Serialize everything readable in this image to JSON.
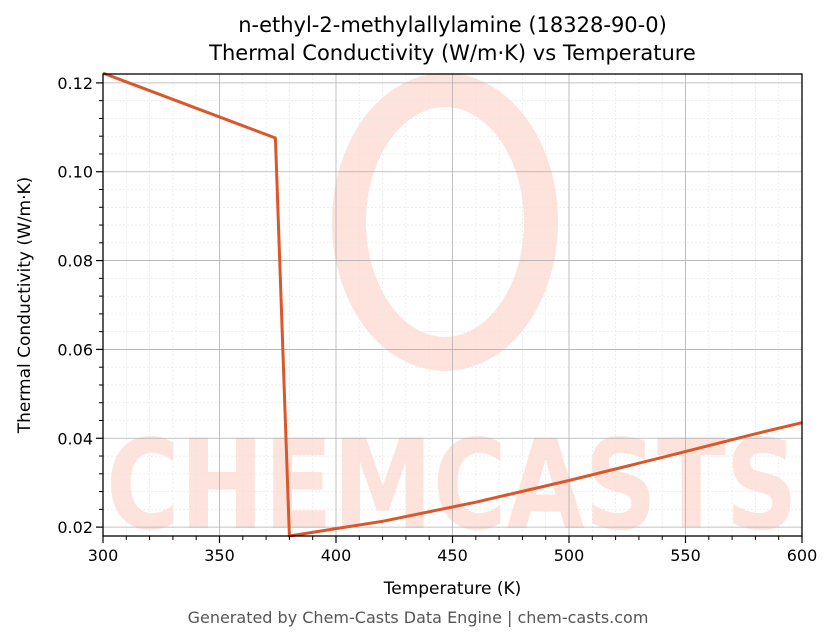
{
  "chart_data": {
    "type": "line",
    "title": "n-ethyl-2-methylallylamine (18328-90-0)",
    "subtitle": "Thermal Conductivity (W/m·K) vs Temperature",
    "xlabel": "Temperature (K)",
    "ylabel": "Thermal Conductivity (W/m·K)",
    "xlim": [
      300,
      600
    ],
    "ylim": [
      0.018,
      0.122
    ],
    "xticks": [
      300,
      350,
      400,
      450,
      500,
      550,
      600
    ],
    "yticks": [
      0.02,
      0.04,
      0.06,
      0.08,
      0.1,
      0.12
    ],
    "ytick_labels": [
      "0.02",
      "0.04",
      "0.06",
      "0.08",
      "0.10",
      "0.12"
    ],
    "grid": true,
    "series": [
      {
        "color": "#d9572b",
        "x": [
          300,
          374,
          380,
          420,
          460,
          500,
          540,
          580,
          600
        ],
        "y": [
          0.1222,
          0.1076,
          0.018,
          0.0213,
          0.0256,
          0.0305,
          0.0357,
          0.041,
          0.0435
        ]
      }
    ]
  },
  "watermark": {
    "text": "CHEMCASTS"
  },
  "footer": "Generated by Chem-Casts Data Engine | chem-casts.com"
}
